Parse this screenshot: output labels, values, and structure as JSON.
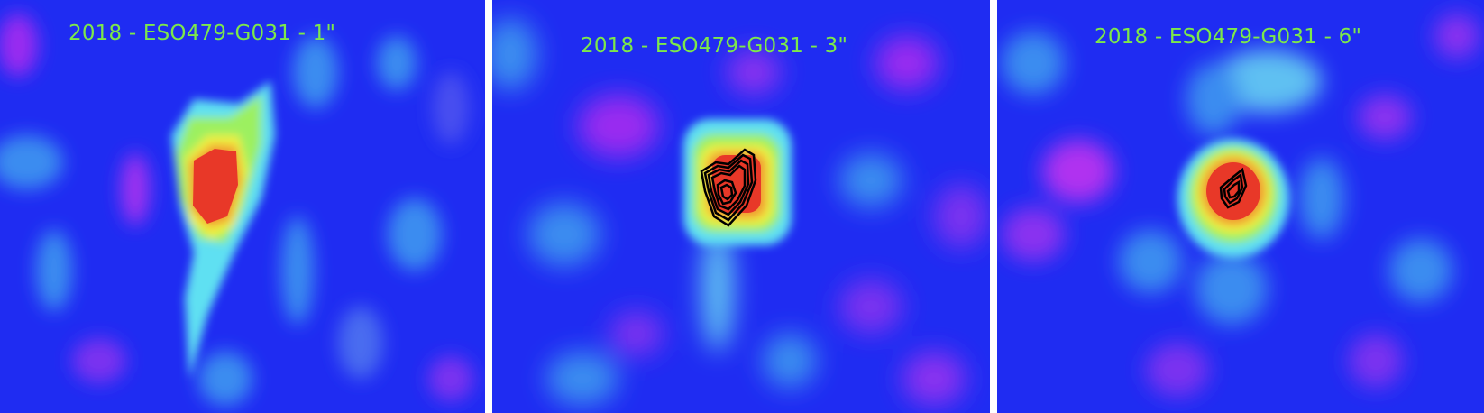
{
  "panels": [
    {
      "label": "2018 - ESO479-G031 - 1\""
    },
    {
      "label": "2018 - ESO479-G031 - 3\""
    },
    {
      "label": "2018 - ESO479-G031 - 6\""
    }
  ],
  "colors": {
    "background": "#1f2cf2",
    "noise_light": "#3a8cf0",
    "noise_purple": "#9a2cf0",
    "cyan": "#5ee0f2",
    "green": "#9cf060",
    "yellow": "#f0f040",
    "orange": "#f09a30",
    "red": "#e83828",
    "contour": "#000000",
    "label": "#7de84a"
  }
}
